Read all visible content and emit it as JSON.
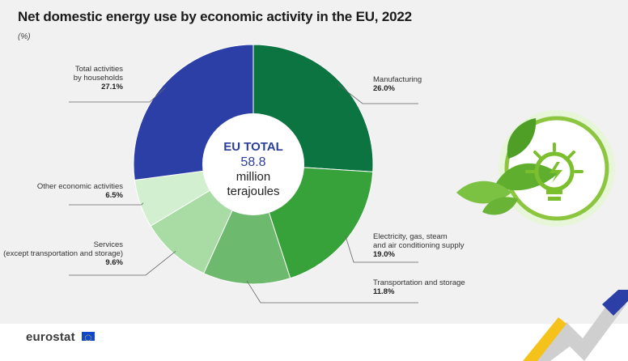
{
  "title": "Net domestic energy use by economic activity in the EU, 2022",
  "unit": "(%)",
  "center": {
    "line1": "EU TOTAL",
    "line2": "58.8",
    "line3": "million",
    "line4": "terajoules"
  },
  "footer": {
    "logo_text": "eurostat"
  },
  "colors": {
    "households": "#2c3fa7",
    "manufacturing": "#0b7440",
    "electricity": "#37a13a",
    "transport": "#6db96d",
    "services": "#a9dba5",
    "other": "#d2f0d0",
    "center_text": "#2c3e9c"
  },
  "chart_data": {
    "type": "pie",
    "title": "Net domestic energy use by economic activity in the EU, 2022",
    "unit": "(%)",
    "slices": [
      {
        "label": [
          "Manufacturing"
        ],
        "value": 26.0,
        "display": "26.0%",
        "color": "#0b7440"
      },
      {
        "label": [
          "Electricity, gas, steam",
          "and air conditioning supply"
        ],
        "value": 19.0,
        "display": "19.0%",
        "color": "#37a13a"
      },
      {
        "label": [
          "Transportation and storage"
        ],
        "value": 11.8,
        "display": "11.8%",
        "color": "#6db96d"
      },
      {
        "label": [
          "Services",
          "(except transportation and storage)"
        ],
        "value": 9.6,
        "display": "9.6%",
        "color": "#a9dba5"
      },
      {
        "label": [
          "Other economic activities"
        ],
        "value": 6.5,
        "display": "6.5%",
        "color": "#d2f0d0"
      },
      {
        "label": [
          "Total activities",
          "by households"
        ],
        "value": 27.1,
        "display": "27.1%",
        "color": "#2c3fa7"
      }
    ]
  }
}
